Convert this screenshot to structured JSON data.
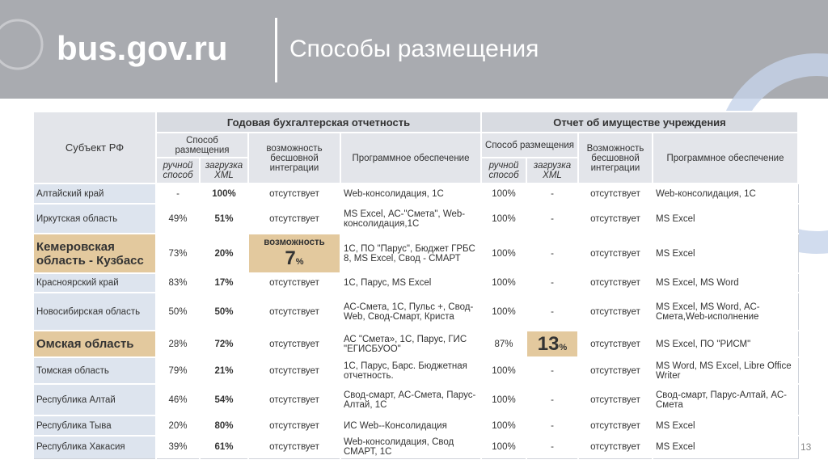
{
  "header": {
    "logo": "bus.gov.ru",
    "title": "Способы размещения"
  },
  "page_number": "13",
  "table": {
    "subject_header": "Субъект РФ",
    "groups": [
      {
        "title": "Годовая бухгалтерская отчетность",
        "method": "Способ размещения",
        "manual": "ручной способ",
        "xml": "загрузка XML",
        "seamless": "возможность бесшовной интеграции",
        "software": "Программное обеспечение"
      },
      {
        "title": "Отчет об имуществе учреждения",
        "method": "Способ размещения",
        "manual": "ручной способ",
        "xml": "загрузка XML",
        "seamless": "Возможность бесшовной интеграции",
        "software": "Программное обеспечение"
      }
    ],
    "rows": [
      [
        "Алтайский край",
        "-",
        "100%",
        "отсутствует",
        "Web-консолидация, 1С",
        "100%",
        "-",
        "отсутствует",
        "Web-консолидация, 1С"
      ],
      [
        "Иркутская область",
        "49%",
        "51%",
        "отсутствует",
        "MS Excel, АС-\"Смета\", Web-консолидация,1С",
        "100%",
        "-",
        "отсутствует",
        "MS Excel"
      ],
      [
        "Кемеровская область - Кузбасс",
        "73%",
        "20%",
        {
          "text": "возможность",
          "value": "7",
          "unit": "%"
        },
        "1С, ПО \"Парус\", Бюджет ГРБС 8, MS Excel, Свод - СМАРТ",
        "100%",
        "-",
        "отсутствует",
        "MS Excel"
      ],
      [
        "Красноярский край",
        "83%",
        "17%",
        "отсутствует",
        "1С, Парус, MS Excel",
        "100%",
        "-",
        "отсутствует",
        "MS Excel,  MS Word"
      ],
      [
        "Новосибирская область",
        "50%",
        "50%",
        "отсутствует",
        "АС-Смета, 1С, Пульс +, Свод-Web, Свод-Смарт, Криста",
        "100%",
        "-",
        "отсутствует",
        "MS Excel, MS Word, АС-Смета,Web-исполнение"
      ],
      [
        "Омская область",
        "28%",
        "72%",
        "отсутствует",
        "АС \"Смета», 1С, Парус, ГИС \"ЕГИСБУОО\"",
        "87%",
        {
          "value": "13",
          "unit": "%"
        },
        "отсутствует",
        "MS Excel, ПО \"РИСМ\""
      ],
      [
        "Томская область",
        "79%",
        "21%",
        "отсутствует",
        "1С, Парус, Барс. Бюджетная отчетность.",
        "100%",
        "-",
        "отсутствует",
        "MS Word, MS Excel, Libre Office Writer"
      ],
      [
        "Республика Алтай",
        "46%",
        "54%",
        "отсутствует",
        "Свод-смарт, АС-Смета, Парус-Алтай, 1С",
        "100%",
        "-",
        "отсутствует",
        "Свод-смарт, Парус-Алтай, АС-Смета"
      ],
      [
        "Республика Тыва",
        "20%",
        "80%",
        "отсутствует",
        "ИС Web--Консолидация",
        "100%",
        "-",
        "отсутствует",
        "MS Excel"
      ],
      [
        "Республика Хакасия",
        "39%",
        "61%",
        "отсутствует",
        "Web-консолидация, Свод СМАРТ, 1С",
        "100%",
        "-",
        "отсутствует",
        "MS Excel"
      ]
    ]
  }
}
